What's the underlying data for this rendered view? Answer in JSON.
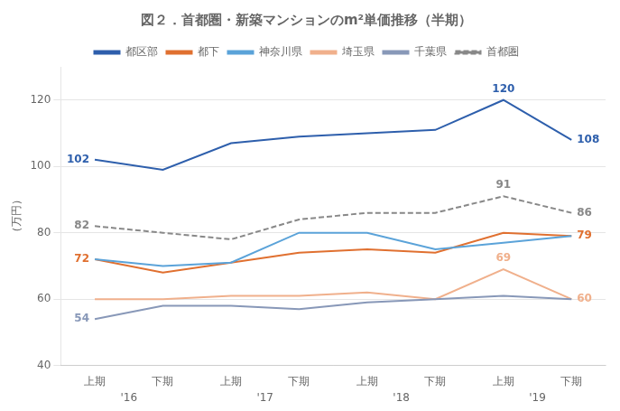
{
  "chart_data": {
    "type": "line",
    "title": "図２．首都圏・新築マンションのm²単価推移（半期）",
    "ylabel": "（万円）",
    "categories": [
      "上期",
      "下期",
      "上期",
      "下期",
      "上期",
      "下期",
      "上期",
      "下期"
    ],
    "category_groups": [
      "'16",
      "'17",
      "'18",
      "'19"
    ],
    "series": [
      {
        "name": "首都圏",
        "color": "#888888",
        "line_style": "dashed",
        "values": [
          82,
          80,
          78,
          84,
          86,
          86,
          91,
          86
        ]
      },
      {
        "name": "千葉県",
        "color": "#8898B8",
        "line_style": "solid",
        "values": [
          54,
          58,
          58,
          57,
          59,
          60,
          61,
          60
        ]
      },
      {
        "name": "埼玉県",
        "color": "#F0B08C",
        "line_style": "solid",
        "values": [
          60,
          60,
          61,
          61,
          62,
          60,
          69,
          60
        ]
      },
      {
        "name": "神奈川県",
        "color": "#5BA3D9",
        "line_style": "solid",
        "values": [
          72,
          70,
          71,
          80,
          80,
          75,
          77,
          79
        ]
      },
      {
        "name": "都下",
        "color": "#E07030",
        "line_style": "solid",
        "values": [
          72,
          68,
          71,
          74,
          75,
          74,
          80,
          79
        ]
      },
      {
        "name": "都区部",
        "color": "#2E5FAC",
        "line_style": "solid",
        "values": [
          102,
          99,
          107,
          109,
          110,
          111,
          120,
          108
        ]
      }
    ],
    "ylim": [
      40,
      130
    ],
    "yticks": [
      40,
      60,
      80,
      100,
      120
    ],
    "grid": true,
    "legend": "top",
    "annotations": [
      {
        "text": "102",
        "x": 0,
        "y": 102,
        "series": "都区部"
      },
      {
        "text": "120",
        "x": 6,
        "y": 120,
        "series": "都区部"
      },
      {
        "text": "108",
        "x": 7,
        "y": 108,
        "series": "都区部"
      },
      {
        "text": "72",
        "x": 0,
        "y": 72,
        "series": "都下"
      },
      {
        "text": "79",
        "x": 7,
        "y": 79,
        "series": "都下"
      },
      {
        "text": "69",
        "x": 6,
        "y": 69,
        "series": "埼玉県"
      },
      {
        "text": "60",
        "x": 7,
        "y": 60,
        "series": "埼玉県"
      },
      {
        "text": "54",
        "x": 0,
        "y": 54,
        "series": "千葉県"
      },
      {
        "text": "82",
        "x": 0,
        "y": 82,
        "series": "首都圏"
      },
      {
        "text": "91",
        "x": 6,
        "y": 91,
        "series": "首都圏"
      },
      {
        "text": "86",
        "x": 7,
        "y": 86,
        "series": "首都圏"
      }
    ]
  }
}
